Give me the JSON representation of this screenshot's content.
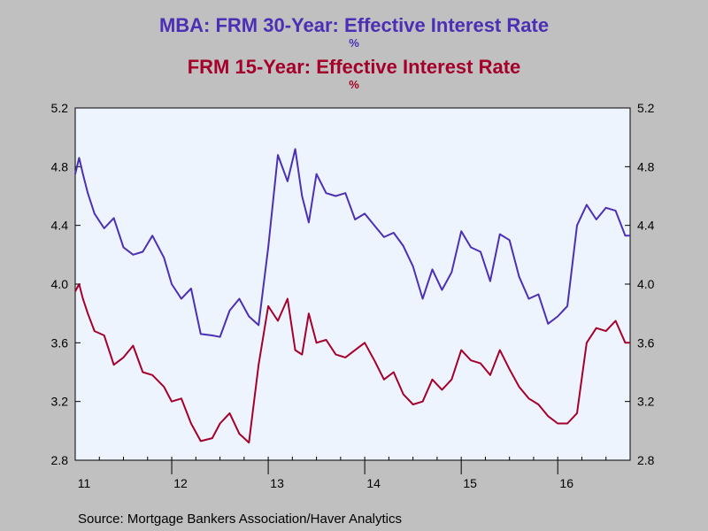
{
  "header": {
    "title_line1": "MBA: FRM 30-Year: Effective Interest Rate",
    "unit_line1": "%",
    "title_line2": "FRM 15-Year: Effective Interest Rate",
    "unit_line2": "%"
  },
  "footer": {
    "source": "Source:  Mortgage Bankers Association/Haver Analytics"
  },
  "colors": {
    "background": "#c0c0c0",
    "plot_background": "#eef4fe",
    "series1": "#4b2fb5",
    "series2": "#a4002a"
  },
  "chart_data": {
    "type": "line",
    "title": "MBA: FRM 30-Year: Effective Interest Rate",
    "subtitle": "FRM 15-Year: Effective Interest Rate",
    "xlabel": "",
    "ylabel": "%",
    "x_ticks": [
      "11",
      "12",
      "13",
      "14",
      "15",
      "16"
    ],
    "xlim": [
      2011.0,
      2016.75
    ],
    "ylim": [
      2.8,
      5.2
    ],
    "y_ticks": [
      "2.8",
      "3.2",
      "3.6",
      "4.0",
      "4.4",
      "4.8",
      "5.2"
    ],
    "y_tick_values": [
      2.8,
      3.2,
      3.6,
      4.0,
      4.4,
      4.8,
      5.2
    ],
    "grid": false,
    "legend": "none",
    "series": [
      {
        "color": "#4b2fb5",
        "x": [
          2011.0,
          2011.04,
          2011.08,
          2011.13,
          2011.2,
          2011.3,
          2011.4,
          2011.5,
          2011.6,
          2011.7,
          2011.8,
          2011.92,
          2012.0,
          2012.1,
          2012.2,
          2012.3,
          2012.42,
          2012.5,
          2012.6,
          2012.7,
          2012.8,
          2012.9,
          2013.0,
          2013.1,
          2013.2,
          2013.28,
          2013.35,
          2013.42,
          2013.5,
          2013.6,
          2013.7,
          2013.8,
          2013.9,
          2014.0,
          2014.1,
          2014.2,
          2014.3,
          2014.4,
          2014.5,
          2014.6,
          2014.7,
          2014.8,
          2014.9,
          2015.0,
          2015.1,
          2015.2,
          2015.3,
          2015.4,
          2015.5,
          2015.6,
          2015.7,
          2015.8,
          2015.9,
          2016.0,
          2016.1,
          2016.2,
          2016.3,
          2016.4,
          2016.5,
          2016.6,
          2016.7,
          2016.75
        ],
        "y": [
          4.75,
          4.86,
          4.75,
          4.62,
          4.48,
          4.38,
          4.45,
          4.25,
          4.2,
          4.22,
          4.33,
          4.18,
          4.0,
          3.9,
          3.97,
          3.66,
          3.65,
          3.64,
          3.82,
          3.9,
          3.78,
          3.72,
          4.25,
          4.88,
          4.7,
          4.92,
          4.6,
          4.42,
          4.75,
          4.62,
          4.6,
          4.62,
          4.44,
          4.48,
          4.4,
          4.32,
          4.35,
          4.26,
          4.12,
          3.9,
          4.1,
          3.96,
          4.08,
          4.36,
          4.25,
          4.22,
          4.02,
          4.34,
          4.3,
          4.05,
          3.9,
          3.93,
          3.73,
          3.78,
          3.85,
          4.4,
          4.54,
          4.44,
          4.52,
          4.5,
          4.33,
          4.33
        ]
      },
      {
        "color": "#a4002a",
        "x": [
          2011.0,
          2011.04,
          2011.08,
          2011.13,
          2011.2,
          2011.3,
          2011.4,
          2011.5,
          2011.6,
          2011.7,
          2011.8,
          2011.92,
          2012.0,
          2012.1,
          2012.2,
          2012.3,
          2012.42,
          2012.5,
          2012.6,
          2012.7,
          2012.8,
          2012.9,
          2013.0,
          2013.1,
          2013.2,
          2013.28,
          2013.35,
          2013.42,
          2013.5,
          2013.6,
          2013.7,
          2013.8,
          2013.9,
          2014.0,
          2014.1,
          2014.2,
          2014.3,
          2014.4,
          2014.5,
          2014.6,
          2014.7,
          2014.8,
          2014.9,
          2015.0,
          2015.1,
          2015.2,
          2015.3,
          2015.4,
          2015.5,
          2015.6,
          2015.7,
          2015.8,
          2015.9,
          2016.0,
          2016.1,
          2016.2,
          2016.3,
          2016.4,
          2016.5,
          2016.6,
          2016.7,
          2016.75
        ],
        "y": [
          3.95,
          4.0,
          3.9,
          3.8,
          3.68,
          3.65,
          3.45,
          3.5,
          3.58,
          3.4,
          3.38,
          3.3,
          3.2,
          3.22,
          3.05,
          2.93,
          2.95,
          3.05,
          3.12,
          2.98,
          2.92,
          3.45,
          3.85,
          3.75,
          3.9,
          3.55,
          3.52,
          3.8,
          3.6,
          3.62,
          3.52,
          3.5,
          3.55,
          3.6,
          3.48,
          3.35,
          3.4,
          3.25,
          3.18,
          3.2,
          3.35,
          3.28,
          3.35,
          3.55,
          3.48,
          3.46,
          3.38,
          3.55,
          3.42,
          3.3,
          3.22,
          3.18,
          3.1,
          3.05,
          3.05,
          3.12,
          3.6,
          3.7,
          3.68,
          3.75,
          3.6,
          3.6
        ]
      }
    ]
  }
}
